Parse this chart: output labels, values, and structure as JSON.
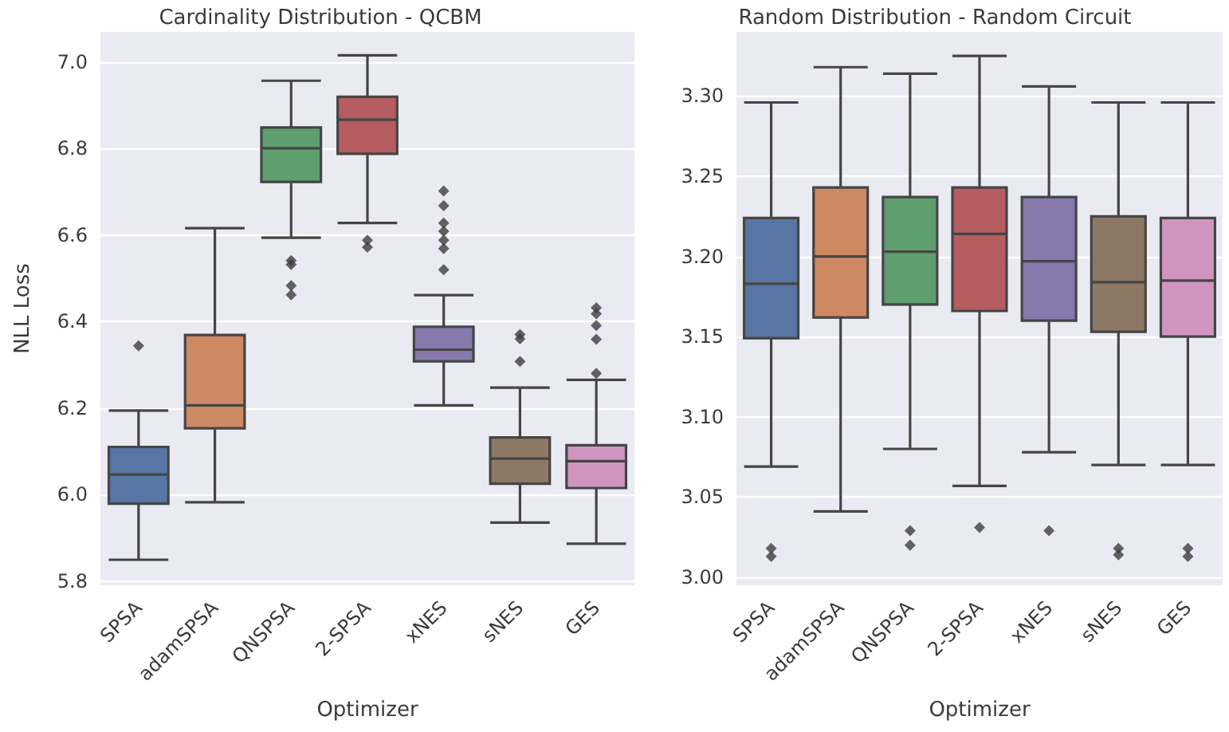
{
  "chart_data": [
    {
      "type": "box",
      "title": "Cardinality Distribution - QCBM",
      "xlabel": "Optimizer",
      "ylabel": "NLL Loss",
      "categories": [
        "SPSA",
        "adamSPSA",
        "QNSPSA",
        "2-SPSA",
        "xNES",
        "sNES",
        "GES"
      ],
      "colors": [
        "#5875a4",
        "#cc8963",
        "#5f9e6e",
        "#b55d60",
        "#857aab",
        "#8d7866",
        "#d095bf"
      ],
      "boxes": [
        {
          "low": 5.849,
          "q1": 5.979,
          "median": 6.046,
          "q3": 6.11,
          "high": 6.194,
          "outliers": [
            6.344
          ]
        },
        {
          "low": 5.982,
          "q1": 6.153,
          "median": 6.206,
          "q3": 6.369,
          "high": 6.616
        },
        {
          "low": 6.594,
          "q1": 6.723,
          "median": 6.801,
          "q3": 6.849,
          "high": 6.957,
          "outliers": [
            6.541,
            6.532,
            6.483,
            6.462
          ]
        },
        {
          "low": 6.628,
          "q1": 6.788,
          "median": 6.867,
          "q3": 6.92,
          "high": 7.016,
          "outliers": [
            6.588,
            6.572
          ]
        },
        {
          "low": 6.206,
          "q1": 6.308,
          "median": 6.335,
          "q3": 6.388,
          "high": 6.461,
          "outliers": [
            6.702,
            6.668,
            6.628,
            6.609,
            6.588,
            6.569,
            6.52
          ]
        },
        {
          "low": 5.935,
          "q1": 6.025,
          "median": 6.083,
          "q3": 6.132,
          "high": 6.247,
          "outliers": [
            6.37,
            6.36,
            6.308
          ]
        },
        {
          "low": 5.886,
          "q1": 6.015,
          "median": 6.077,
          "q3": 6.114,
          "high": 6.265,
          "outliers": [
            6.432,
            6.418,
            6.391,
            6.359,
            6.28
          ]
        }
      ],
      "ylim": [
        5.79,
        7.07
      ],
      "yticks": [
        {
          "value": 5.8,
          "label": "5.8"
        },
        {
          "value": 6,
          "label": "6.0"
        },
        6.2,
        6.4,
        6.6,
        6.8,
        {
          "value": 7,
          "label": "7.0"
        }
      ],
      "grid": "y",
      "marker": "diamond"
    },
    {
      "type": "box",
      "title": "Random Distribution - Random Circuit",
      "xlabel": "Optimizer",
      "categories": [
        "SPSA",
        "adamSPSA",
        "QNSPSA",
        "2-SPSA",
        "xNES",
        "sNES",
        "GES"
      ],
      "colors": [
        "#5875a4",
        "#cc8963",
        "#5f9e6e",
        "#b55d60",
        "#857aab",
        "#8d7866",
        "#d095bf"
      ],
      "boxes": [
        {
          "low": 3.069,
          "q1": 3.149,
          "median": 3.183,
          "q3": 3.224,
          "high": 3.296,
          "outliers": [
            3.018,
            3.013
          ]
        },
        {
          "low": 3.041,
          "q1": 3.162,
          "median": 3.2,
          "q3": 3.243,
          "high": 3.318
        },
        {
          "low": 3.08,
          "q1": 3.17,
          "median": 3.203,
          "q3": 3.237,
          "high": 3.314,
          "outliers": [
            3.029,
            3.02
          ]
        },
        {
          "low": 3.057,
          "q1": 3.166,
          "median": 3.214,
          "q3": 3.243,
          "high": 3.325,
          "outliers": [
            3.031
          ]
        },
        {
          "low": 3.078,
          "q1": 3.16,
          "median": 3.197,
          "q3": 3.237,
          "high": 3.306,
          "outliers": [
            3.029
          ]
        },
        {
          "low": 3.07,
          "q1": 3.153,
          "median": 3.184,
          "q3": 3.225,
          "high": 3.296,
          "outliers": [
            3.018,
            3.014
          ]
        },
        {
          "low": 3.07,
          "q1": 3.15,
          "median": 3.185,
          "q3": 3.224,
          "high": 3.296,
          "outliers": [
            3.018,
            3.013
          ]
        }
      ],
      "ylim": [
        2.995,
        3.34
      ],
      "yticks": [
        {
          "value": 3,
          "label": "3.00"
        },
        3.05,
        {
          "value": 3.1,
          "label": "3.10"
        },
        3.15,
        {
          "value": 3.2,
          "label": "3.20"
        },
        3.25,
        {
          "value": 3.3,
          "label": "3.30"
        }
      ],
      "grid": "y",
      "marker": "diamond"
    }
  ]
}
